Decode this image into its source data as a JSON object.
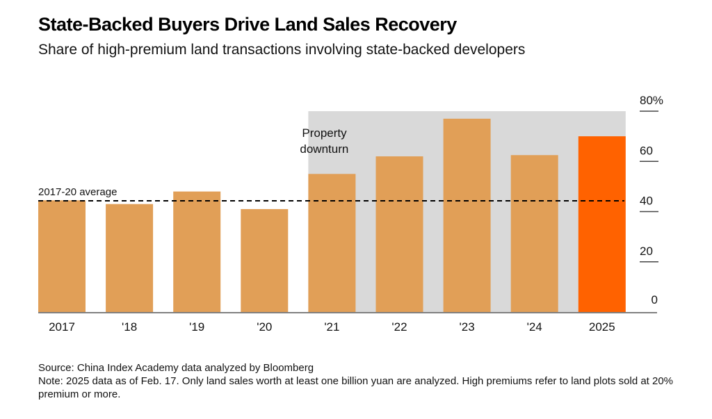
{
  "title": "State-Backed Buyers Drive Land Sales Recovery",
  "subtitle": "Share of high-premium land transactions involving state-backed developers",
  "footer": {
    "source": "Source: China Index Academy data analyzed by Bloomberg",
    "note": "Note: 2025 data as of Feb. 17. Only land sales worth at least one billion yuan are analyzed. High premiums refer to land plots sold at 20% premium or more."
  },
  "chart_data": {
    "type": "bar",
    "title": "State-Backed Buyers Drive Land Sales Recovery",
    "subtitle": "Share of high-premium land transactions involving state-backed developers",
    "xlabel": "",
    "ylabel": "",
    "categories": [
      "2017",
      "'18",
      "'19",
      "'20",
      "'21",
      "'22",
      "'23",
      "'24",
      "2025"
    ],
    "values": [
      44.5,
      43,
      48,
      41,
      55,
      62,
      77,
      62.5,
      70
    ],
    "unit": "%",
    "ylim": [
      0,
      80
    ],
    "yticks": [
      0,
      20,
      40,
      60,
      80
    ],
    "ytick_labels": [
      "0",
      "20",
      "40",
      "60",
      "80%"
    ],
    "y_axis_side": "right",
    "grid": false,
    "colors": {
      "default_bar": "#E19F57",
      "highlight_bar": "#FF6200",
      "shaded_region": "#D9D9D9",
      "reference_line": "#000000"
    },
    "highlight_category": "2025",
    "reference_line": {
      "label": "2017-20 average",
      "value": 44.3,
      "style": "dashed"
    },
    "shaded_region": {
      "label": "Property downturn",
      "from": "'21",
      "to": "2025",
      "label_lines": [
        "Property",
        "downturn"
      ]
    }
  }
}
